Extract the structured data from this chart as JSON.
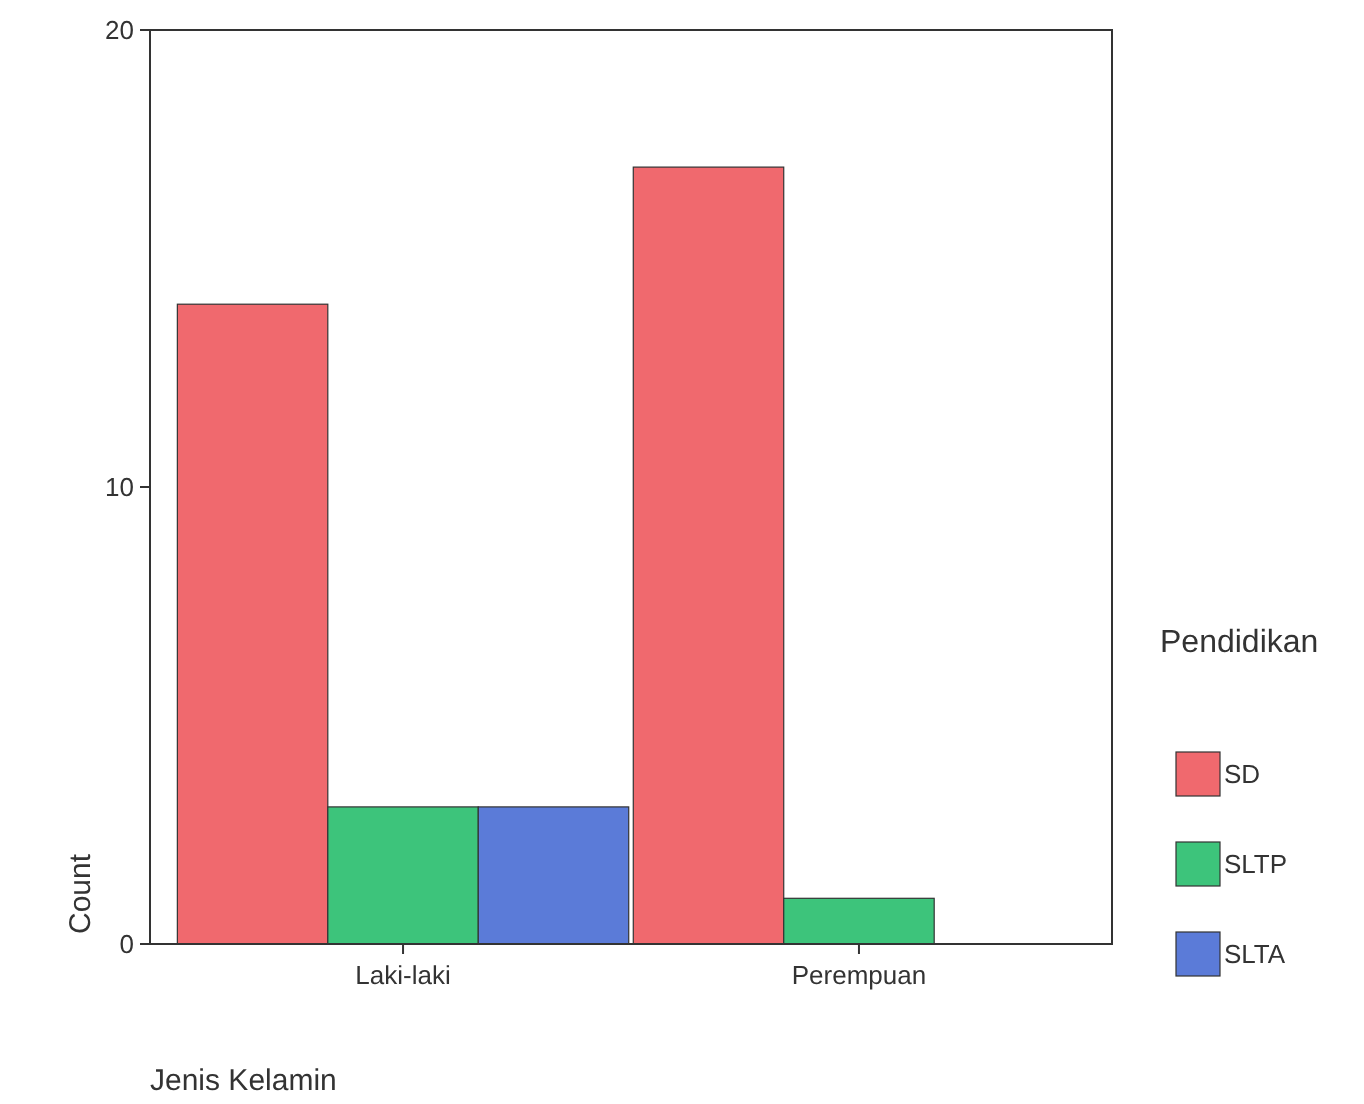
{
  "chart_data": {
    "type": "bar",
    "xlabel": "Jenis Kelamin",
    "ylabel": "Count",
    "legend_title": "Pendidikan",
    "categories": [
      "Laki-laki",
      "Perempuan"
    ],
    "series": [
      {
        "name": "SD",
        "color": "#f0696e",
        "values": [
          14,
          17
        ]
      },
      {
        "name": "SLTP",
        "color": "#3dc47b",
        "values": [
          3,
          1
        ]
      },
      {
        "name": "SLTA",
        "color": "#5b7bd8",
        "values": [
          3,
          0
        ]
      }
    ],
    "ylim": [
      0,
      20
    ],
    "yticks": [
      0,
      10,
      20
    ],
    "grid": false,
    "legend": "right"
  }
}
